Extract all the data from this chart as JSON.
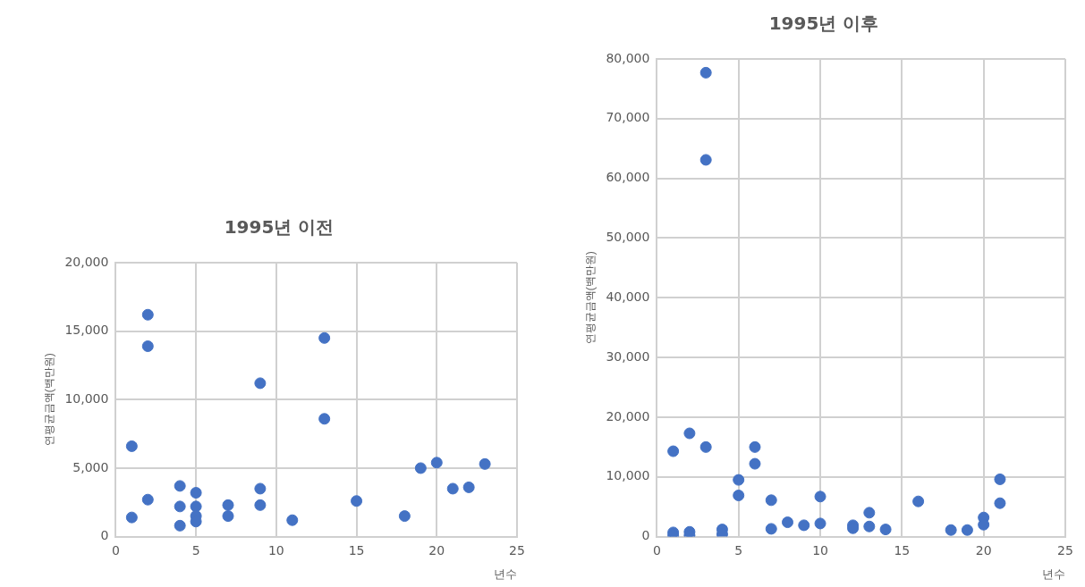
{
  "chart_data": [
    {
      "type": "scatter",
      "title": "1995년 이전",
      "xlabel": "년수",
      "ylabel": "연평균금액(백만원)",
      "marker": "circle",
      "grid": true,
      "legend": false,
      "xlim": [
        0,
        25
      ],
      "xticks": [
        0,
        5,
        10,
        15,
        20,
        25
      ],
      "ylim": [
        0,
        20000
      ],
      "yticks": [
        0,
        {
          "value": 5000,
          "label": "5,000"
        },
        {
          "value": 10000,
          "label": "10,000"
        },
        {
          "value": 15000,
          "label": "15,000"
        },
        {
          "value": 20000,
          "label": "20,000"
        }
      ],
      "series": [
        {
          "color": "#4472c4",
          "x": [
            1,
            1,
            2,
            2,
            2,
            4,
            4,
            4,
            5,
            5,
            5,
            5,
            7,
            7,
            9,
            9,
            9,
            11,
            13,
            13,
            15,
            18,
            19,
            20,
            21,
            22,
            23
          ],
          "values": [
            6600,
            1400,
            16200,
            13900,
            2700,
            3700,
            2200,
            800,
            3200,
            2200,
            1500,
            1100,
            2300,
            1500,
            11200,
            3500,
            2300,
            1200,
            14500,
            8600,
            2600,
            1500,
            5000,
            5400,
            3500,
            3600,
            5300
          ]
        }
      ]
    },
    {
      "type": "scatter",
      "title": "1995년 이후",
      "xlabel": "년수",
      "ylabel": "연평균금액(백만원)",
      "marker": "circle",
      "grid": true,
      "legend": false,
      "xlim": [
        0,
        25
      ],
      "xticks": [
        0,
        5,
        10,
        15,
        20,
        25
      ],
      "ylim": [
        0,
        80000
      ],
      "yticks": [
        0,
        {
          "value": 10000,
          "label": "10,000"
        },
        {
          "value": 20000,
          "label": "20,000"
        },
        {
          "value": 30000,
          "label": "30,000"
        },
        {
          "value": 40000,
          "label": "40,000"
        },
        {
          "value": 50000,
          "label": "50,000"
        },
        {
          "value": 60000,
          "label": "60,000"
        },
        {
          "value": 70000,
          "label": "70,000"
        },
        {
          "value": 80000,
          "label": "80,000"
        }
      ],
      "series": [
        {
          "color": "#4472c4",
          "x": [
            1,
            1,
            1,
            2,
            2,
            2,
            3,
            3,
            3,
            4,
            4,
            5,
            5,
            6,
            6,
            7,
            7,
            8,
            9,
            10,
            10,
            12,
            12,
            13,
            13,
            14,
            16,
            18,
            19,
            20,
            20,
            21,
            21
          ],
          "values": [
            14300,
            700,
            200,
            17300,
            800,
            200,
            77700,
            63100,
            15000,
            1200,
            400,
            9500,
            6900,
            15000,
            12200,
            6100,
            1300,
            2400,
            1900,
            6700,
            2200,
            1900,
            1400,
            4000,
            1700,
            1200,
            5900,
            1100,
            1100,
            3200,
            2000,
            9600,
            5600
          ]
        }
      ]
    }
  ]
}
